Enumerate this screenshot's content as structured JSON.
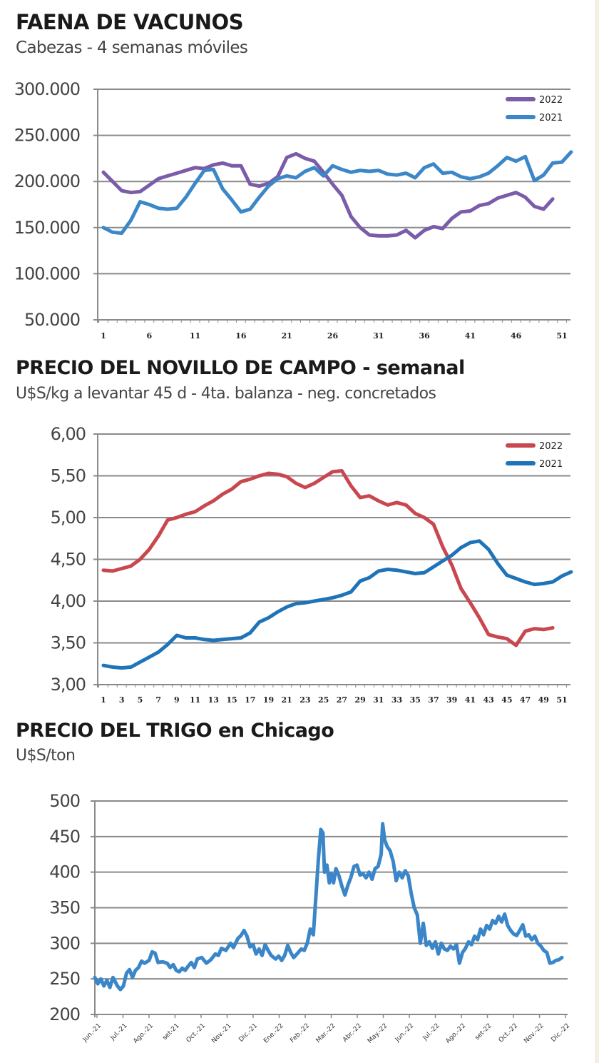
{
  "chart_data": [
    {
      "type": "line",
      "title": "FAENA DE VACUNOS",
      "subtitle": "Cabezas - 4 semanas móviles",
      "xlabel": "",
      "ylabel": "",
      "ylim": [
        50000,
        300000
      ],
      "yticks": [
        "300.000",
        "250.000",
        "200.000",
        "150.000",
        "100.000",
        "50.000"
      ],
      "ytick_values": [
        300000,
        250000,
        200000,
        150000,
        100000,
        50000
      ],
      "xticks": [
        "1",
        "6",
        "11",
        "16",
        "21",
        "26",
        "31",
        "36",
        "41",
        "46",
        "51"
      ],
      "xlim": [
        1,
        52
      ],
      "grid": true,
      "legend": "top-right",
      "series": [
        {
          "name": "2022",
          "color": "#7a5ca8",
          "x_start": 1,
          "values": [
            210000,
            200000,
            190000,
            188000,
            189000,
            196000,
            203000,
            206000,
            209000,
            212000,
            215000,
            214000,
            218000,
            220000,
            217000,
            217000,
            197000,
            195000,
            198000,
            205000,
            226000,
            230000,
            225000,
            222000,
            210000,
            197000,
            185000,
            162000,
            150000,
            142000,
            141000,
            141000,
            142000,
            147000,
            139000,
            147000,
            151000,
            149000,
            160000,
            167000,
            168000,
            174000,
            176000,
            182000,
            185000,
            188000,
            183000,
            173000,
            170000,
            181000
          ]
        },
        {
          "name": "2021",
          "color": "#3c87c7",
          "x_start": 1,
          "values": [
            150000,
            145000,
            144000,
            158000,
            178000,
            175000,
            171000,
            170000,
            171000,
            183000,
            198000,
            212000,
            213000,
            192000,
            180000,
            167000,
            170000,
            183000,
            195000,
            203000,
            206000,
            204000,
            211000,
            215000,
            206000,
            217000,
            213000,
            210000,
            212000,
            211000,
            212000,
            208000,
            207000,
            209000,
            204000,
            215000,
            219000,
            209000,
            210000,
            205000,
            203000,
            205000,
            209000,
            217000,
            226000,
            222000,
            227000,
            201000,
            207000,
            220000,
            221000,
            232000
          ]
        }
      ]
    },
    {
      "type": "line",
      "title": "PRECIO DEL NOVILLO DE CAMPO - semanal",
      "subtitle": "U$S/kg a levantar 45 d - 4ta. balanza - neg. concretados",
      "xlabel": "",
      "ylabel": "",
      "ylim": [
        3.0,
        6.0
      ],
      "yticks": [
        "6,00",
        "5,50",
        "5,00",
        "4,50",
        "4,00",
        "3,50",
        "3,00"
      ],
      "ytick_values": [
        6.0,
        5.5,
        5.0,
        4.5,
        4.0,
        3.5,
        3.0
      ],
      "xticks": [
        "1",
        "3",
        "5",
        "7",
        "9",
        "11",
        "13",
        "15",
        "17",
        "19",
        "21",
        "23",
        "25",
        "27",
        "29",
        "31",
        "33",
        "35",
        "37",
        "39",
        "41",
        "43",
        "45",
        "47",
        "49",
        "51"
      ],
      "xlim": [
        1,
        52
      ],
      "grid": true,
      "legend": "top-right",
      "series": [
        {
          "name": "2022",
          "color": "#c9474f",
          "x_start": 1,
          "values": [
            4.37,
            4.36,
            4.39,
            4.42,
            4.5,
            4.62,
            4.78,
            4.97,
            5.0,
            5.04,
            5.07,
            5.14,
            5.2,
            5.28,
            5.34,
            5.43,
            5.46,
            5.5,
            5.53,
            5.52,
            5.49,
            5.41,
            5.36,
            5.41,
            5.48,
            5.55,
            5.56,
            5.38,
            5.24,
            5.26,
            5.2,
            5.15,
            5.18,
            5.15,
            5.05,
            5.0,
            4.92,
            4.65,
            4.43,
            4.15,
            3.98,
            3.8,
            3.6,
            3.57,
            3.55,
            3.47,
            3.64,
            3.67,
            3.66,
            3.68
          ]
        },
        {
          "name": "2021",
          "color": "#1f74b8",
          "x_start": 1,
          "values": [
            3.23,
            3.21,
            3.2,
            3.21,
            3.27,
            3.33,
            3.39,
            3.48,
            3.59,
            3.56,
            3.56,
            3.54,
            3.53,
            3.54,
            3.55,
            3.56,
            3.62,
            3.75,
            3.8,
            3.87,
            3.93,
            3.97,
            3.98,
            4.0,
            4.02,
            4.04,
            4.07,
            4.11,
            4.24,
            4.28,
            4.36,
            4.38,
            4.37,
            4.35,
            4.33,
            4.34,
            4.41,
            4.48,
            4.55,
            4.64,
            4.7,
            4.72,
            4.62,
            4.45,
            4.31,
            4.27,
            4.23,
            4.2,
            4.21,
            4.23,
            4.3,
            4.35
          ]
        }
      ]
    },
    {
      "type": "line",
      "title": "PRECIO DEL TRIGO en Chicago",
      "subtitle": "U$S/ton",
      "xlabel": "",
      "ylabel": "",
      "ylim": [
        200,
        500
      ],
      "yticks": [
        "500",
        "450",
        "400",
        "350",
        "300",
        "250",
        "200"
      ],
      "ytick_values": [
        500,
        450,
        400,
        350,
        300,
        250,
        200
      ],
      "xticks": [
        "Jun.-21",
        "Jul.-21",
        "Ago.-21",
        "set-21",
        "Oct.-21",
        "Nov.-21",
        "Dic.-21",
        "Ene.-22",
        "Feb.-22",
        "Mar.-22",
        "Abr.-22",
        "May.-22",
        "Jun.-22",
        "Jul.-22",
        "Ago.-22",
        "set-22",
        "Oct.-22",
        "Nov.-22",
        "Dic.-22"
      ],
      "grid": true,
      "legend": "none",
      "series": [
        {
          "name": "Trigo Chicago",
          "color": "#3a86c8",
          "x_unit": "month index (0 = Jun.-21)",
          "points": [
            [
              0.0,
              252
            ],
            [
              0.1,
              243
            ],
            [
              0.2,
              250
            ],
            [
              0.3,
              240
            ],
            [
              0.4,
              248
            ],
            [
              0.5,
              238
            ],
            [
              0.6,
              252
            ],
            [
              0.75,
              240
            ],
            [
              0.85,
              235
            ],
            [
              0.95,
              240
            ],
            [
              1.05,
              258
            ],
            [
              1.15,
              263
            ],
            [
              1.25,
              252
            ],
            [
              1.35,
              262
            ],
            [
              1.45,
              266
            ],
            [
              1.55,
              275
            ],
            [
              1.65,
              272
            ],
            [
              1.8,
              276
            ],
            [
              1.9,
              288
            ],
            [
              2.0,
              286
            ],
            [
              2.1,
              273
            ],
            [
              2.25,
              274
            ],
            [
              2.4,
              272
            ],
            [
              2.5,
              266
            ],
            [
              2.6,
              270
            ],
            [
              2.7,
              262
            ],
            [
              2.8,
              260
            ],
            [
              2.9,
              265
            ],
            [
              3.0,
              262
            ],
            [
              3.1,
              268
            ],
            [
              3.2,
              273
            ],
            [
              3.3,
              266
            ],
            [
              3.4,
              278
            ],
            [
              3.55,
              280
            ],
            [
              3.7,
              272
            ],
            [
              3.85,
              277
            ],
            [
              4.0,
              285
            ],
            [
              4.1,
              283
            ],
            [
              4.2,
              293
            ],
            [
              4.35,
              290
            ],
            [
              4.5,
              300
            ],
            [
              4.6,
              294
            ],
            [
              4.75,
              307
            ],
            [
              4.85,
              311
            ],
            [
              4.95,
              318
            ],
            [
              5.05,
              310
            ],
            [
              5.15,
              295
            ],
            [
              5.25,
              298
            ],
            [
              5.35,
              285
            ],
            [
              5.45,
              292
            ],
            [
              5.55,
              283
            ],
            [
              5.65,
              298
            ],
            [
              5.75,
              290
            ],
            [
              5.85,
              283
            ],
            [
              6.0,
              278
            ],
            [
              6.1,
              282
            ],
            [
              6.2,
              276
            ],
            [
              6.3,
              283
            ],
            [
              6.4,
              297
            ],
            [
              6.5,
              287
            ],
            [
              6.6,
              280
            ],
            [
              6.75,
              287
            ],
            [
              6.85,
              292
            ],
            [
              6.95,
              290
            ],
            [
              7.05,
              300
            ],
            [
              7.15,
              320
            ],
            [
              7.25,
              312
            ],
            [
              7.35,
              375
            ],
            [
              7.42,
              420
            ],
            [
              7.5,
              460
            ],
            [
              7.57,
              455
            ],
            [
              7.62,
              400
            ],
            [
              7.7,
              410
            ],
            [
              7.78,
              385
            ],
            [
              7.85,
              398
            ],
            [
              7.92,
              385
            ],
            [
              8.0,
              405
            ],
            [
              8.1,
              395
            ],
            [
              8.2,
              380
            ],
            [
              8.3,
              368
            ],
            [
              8.4,
              382
            ],
            [
              8.5,
              393
            ],
            [
              8.6,
              408
            ],
            [
              8.7,
              410
            ],
            [
              8.8,
              396
            ],
            [
              8.9,
              398
            ],
            [
              9.0,
              392
            ],
            [
              9.1,
              400
            ],
            [
              9.2,
              390
            ],
            [
              9.3,
              405
            ],
            [
              9.4,
              408
            ],
            [
              9.5,
              425
            ],
            [
              9.55,
              468
            ],
            [
              9.62,
              445
            ],
            [
              9.7,
              436
            ],
            [
              9.8,
              430
            ],
            [
              9.9,
              415
            ],
            [
              10.0,
              388
            ],
            [
              10.1,
              400
            ],
            [
              10.2,
              392
            ],
            [
              10.3,
              402
            ],
            [
              10.4,
              395
            ],
            [
              10.5,
              370
            ],
            [
              10.6,
              350
            ],
            [
              10.7,
              340
            ],
            [
              10.8,
              300
            ],
            [
              10.9,
              328
            ],
            [
              11.0,
              297
            ],
            [
              11.1,
              302
            ],
            [
              11.2,
              293
            ],
            [
              11.3,
              302
            ],
            [
              11.4,
              285
            ],
            [
              11.5,
              300
            ],
            [
              11.6,
              292
            ],
            [
              11.7,
              290
            ],
            [
              11.8,
              296
            ],
            [
              11.9,
              292
            ],
            [
              12.0,
              298
            ],
            [
              12.1,
              272
            ],
            [
              12.2,
              287
            ],
            [
              12.3,
              293
            ],
            [
              12.4,
              302
            ],
            [
              12.5,
              298
            ],
            [
              12.6,
              310
            ],
            [
              12.7,
              305
            ],
            [
              12.8,
              320
            ],
            [
              12.9,
              312
            ],
            [
              13.0,
              325
            ],
            [
              13.1,
              320
            ],
            [
              13.2,
              332
            ],
            [
              13.3,
              328
            ],
            [
              13.4,
              338
            ],
            [
              13.5,
              330
            ],
            [
              13.6,
              341
            ],
            [
              13.7,
              325
            ],
            [
              13.8,
              318
            ],
            [
              13.9,
              313
            ],
            [
              14.0,
              311
            ],
            [
              14.1,
              318
            ],
            [
              14.2,
              326
            ],
            [
              14.3,
              310
            ],
            [
              14.4,
              312
            ],
            [
              14.5,
              305
            ],
            [
              14.6,
              310
            ],
            [
              14.7,
              300
            ],
            [
              14.8,
              296
            ],
            [
              14.9,
              290
            ],
            [
              15.0,
              287
            ],
            [
              15.1,
              272
            ],
            [
              15.2,
              273
            ],
            [
              15.3,
              276
            ],
            [
              15.4,
              277
            ],
            [
              15.5,
              280
            ]
          ]
        }
      ]
    }
  ]
}
